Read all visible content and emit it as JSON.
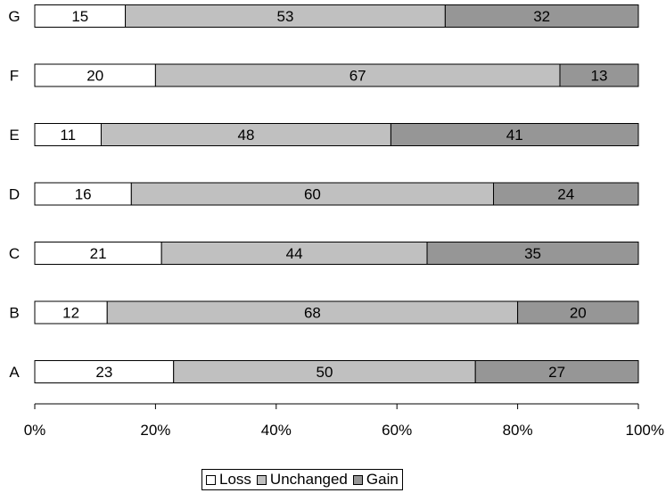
{
  "chart_data": {
    "type": "bar",
    "orientation": "horizontal",
    "stacked": "percent",
    "categories": [
      "A",
      "B",
      "C",
      "D",
      "E",
      "F",
      "G"
    ],
    "series": [
      {
        "name": "Loss",
        "color": "#ffffff",
        "values": [
          23,
          12,
          21,
          16,
          11,
          20,
          15
        ]
      },
      {
        "name": "Unchanged",
        "color": "#c0c0c0",
        "values": [
          50,
          68,
          44,
          60,
          48,
          67,
          53
        ]
      },
      {
        "name": "Gain",
        "color": "#969696",
        "values": [
          27,
          20,
          35,
          24,
          41,
          13,
          32
        ]
      }
    ],
    "xlim": [
      0,
      100
    ],
    "xticks": [
      "0%",
      "20%",
      "40%",
      "60%",
      "80%",
      "100%"
    ],
    "grid": false,
    "legend_position": "bottom"
  }
}
